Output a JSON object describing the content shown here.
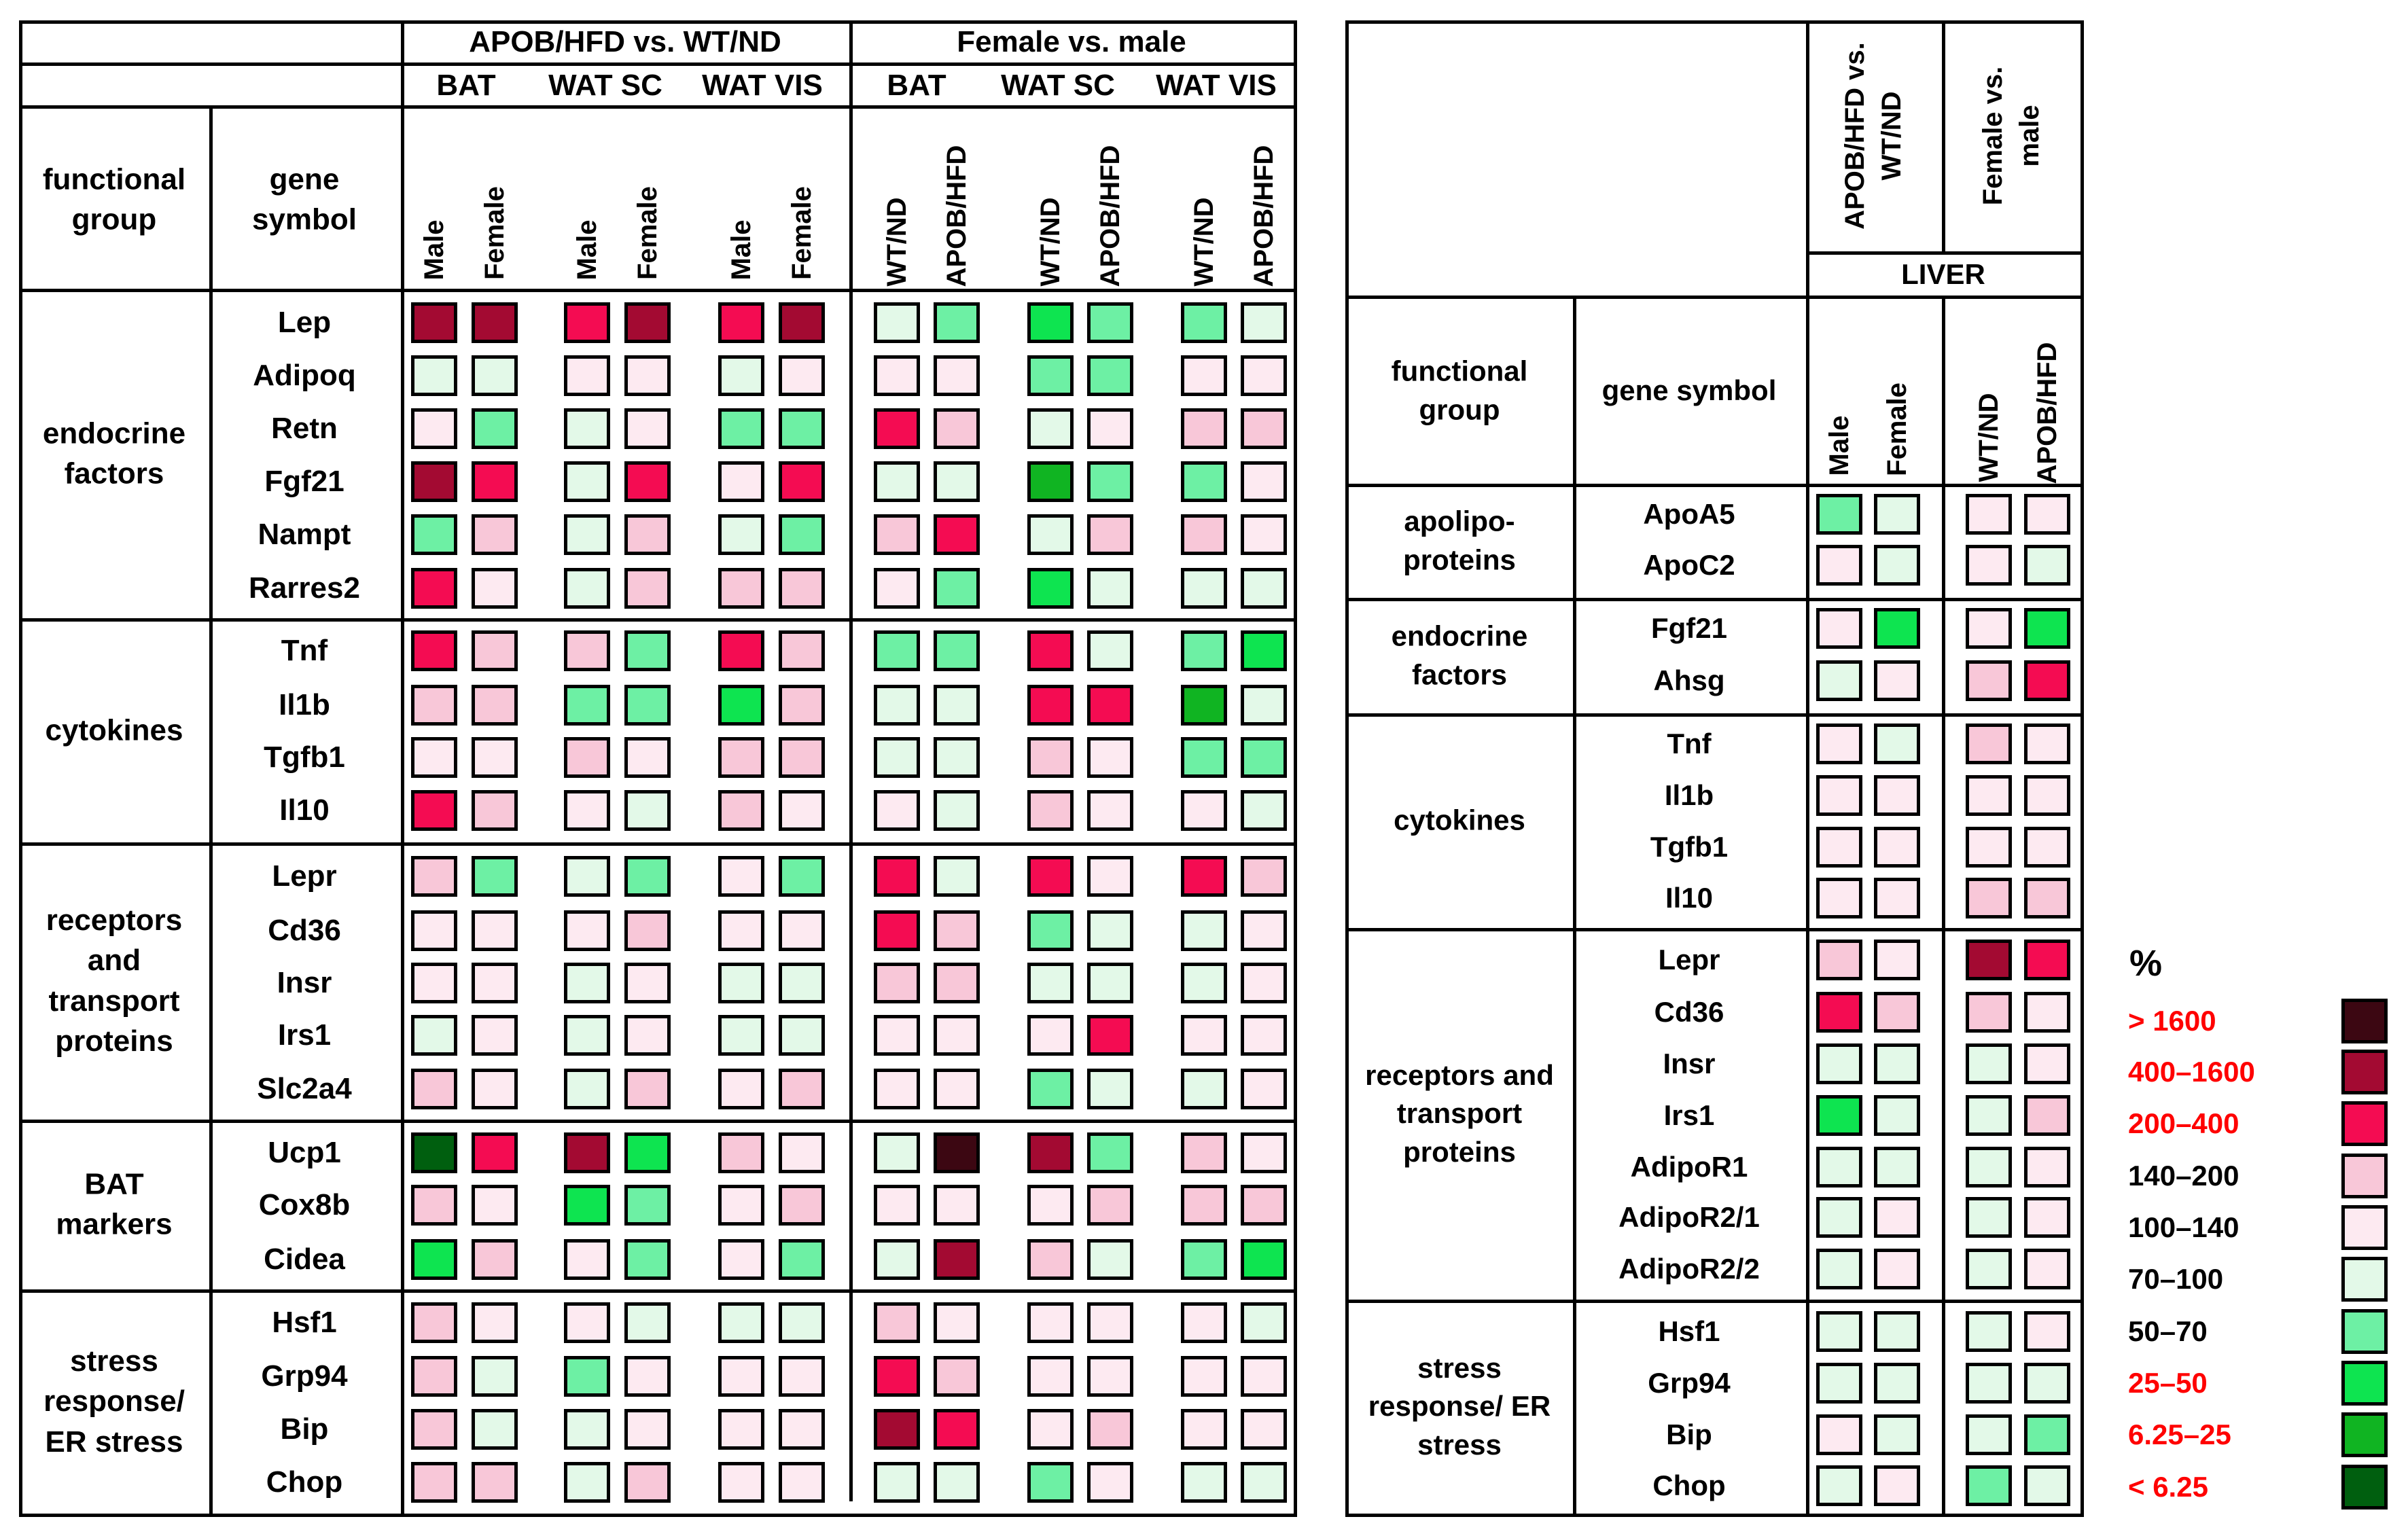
{
  "colors": {
    "gt1600": "#3c0712",
    "c400_1600": "#a30a32",
    "c200_400": "#f40c52",
    "c140_200": "#f8c7d8",
    "c100_140": "#fdeaf1",
    "c70_100": "#e3f9e8",
    "c50_70": "#6df0a4",
    "c25_50": "#0ee450",
    "c6_25": "#10b422",
    "lt6": "#005f0f"
  },
  "left": {
    "top_groups": [
      "APOB/HFD vs. WT/ND",
      "Female vs. male"
    ],
    "tissues": [
      "BAT",
      "WAT SC",
      "WAT VIS",
      "BAT",
      "WAT SC",
      "WAT VIS"
    ],
    "col_labels": [
      "Male",
      "Female",
      "Male",
      "Female",
      "Male",
      "Female",
      "WT/ND",
      "APOB/HFD",
      "WT/ND",
      "APOB/HFD",
      "WT/ND",
      "APOB/HFD"
    ],
    "h_group": "functional group",
    "h_gene": "gene symbol",
    "groups": [
      {
        "name": "endocrine factors"
      },
      {
        "name": "cytokines"
      },
      {
        "name": "receptors and transport proteins"
      },
      {
        "name": "BAT markers"
      },
      {
        "name": "stress response/ ER stress"
      }
    ],
    "genes": [
      "Lep",
      "Adipoq",
      "Retn",
      "Fgf21",
      "Nampt",
      "Rarres2",
      "Tnf",
      "Il1b",
      "Tgfb1",
      "Il10",
      "Lepr",
      "Cd36",
      "Insr",
      "Irs1",
      "Slc2a4",
      "Ucp1",
      "Cox8b",
      "Cidea",
      "Hsf1",
      "Grp94",
      "Bip",
      "Chop"
    ]
  },
  "right": {
    "col_groups": [
      "APOB/HFD vs. WT/ND",
      "Female vs. male"
    ],
    "tissue": "LIVER",
    "h_group": "functional group",
    "h_gene": "gene symbol",
    "col_labels": [
      "Male",
      "Female",
      "WT/ND",
      "APOB/HFD"
    ],
    "groups": [
      {
        "name": "apolipo- proteins"
      },
      {
        "name": "endocrine factors"
      },
      {
        "name": "cytokines"
      },
      {
        "name": "receptors and transport proteins"
      },
      {
        "name": "stress response/ ER stress"
      }
    ],
    "genes": [
      "ApoA5",
      "ApoC2",
      "Fgf21",
      "Ahsg",
      "Tnf",
      "Il1b",
      "Tgfb1",
      "Il10",
      "Lepr",
      "Cd36",
      "Insr",
      "Irs1",
      "AdipoR1",
      "AdipoR2/1",
      "AdipoR2/2",
      "Hsf1",
      "Grp94",
      "Bip",
      "Chop"
    ]
  },
  "legend": {
    "title": "%",
    "items": [
      {
        "label": "> 1600",
        "code": "gt1600",
        "text_color": "#ff0000"
      },
      {
        "label": "400–1600",
        "code": "c400_1600",
        "text_color": "#ff0000"
      },
      {
        "label": "200–400",
        "code": "c200_400",
        "text_color": "#ff0000"
      },
      {
        "label": "140–200",
        "code": "c140_200",
        "text_color": "#000000"
      },
      {
        "label": "100–140",
        "code": "c100_140",
        "text_color": "#000000"
      },
      {
        "label": "70–100",
        "code": "c70_100",
        "text_color": "#000000"
      },
      {
        "label": "50–70",
        "code": "c50_70",
        "text_color": "#000000"
      },
      {
        "label": "25–50",
        "code": "c25_50",
        "text_color": "#ff0000"
      },
      {
        "label": "6.25–25",
        "code": "c6_25",
        "text_color": "#ff0000"
      },
      {
        "label": "< 6.25",
        "code": "lt6",
        "text_color": "#ff0000"
      }
    ]
  },
  "chart_data": [
    {
      "type": "heatmap",
      "title": "",
      "column_groups": [
        "APOB/HFD vs. WT/ND",
        "Female vs. male"
      ],
      "columns": [
        "BAT Male",
        "BAT Female",
        "WAT SC Male",
        "WAT SC Female",
        "WAT VIS Male",
        "WAT VIS Female",
        "BAT WT/ND",
        "BAT APOB/HFD",
        "WAT SC WT/ND",
        "WAT SC APOB/HFD",
        "WAT VIS WT/ND",
        "WAT VIS APOB/HFD"
      ],
      "rows": [
        "Lep",
        "Adipoq",
        "Retn",
        "Fgf21",
        "Nampt",
        "Rarres2",
        "Tnf",
        "Il1b",
        "Tgfb1",
        "Il10",
        "Lepr",
        "Cd36",
        "Insr",
        "Irs1",
        "Slc2a4",
        "Ucp1",
        "Cox8b",
        "Cidea",
        "Hsf1",
        "Grp94",
        "Bip",
        "Chop"
      ],
      "value_scale": "%",
      "values": [
        [
          "400-1600",
          "400-1600",
          "200-400",
          "400-1600",
          "200-400",
          "400-1600",
          "70-100",
          "50-70",
          "25-50",
          "50-70",
          "50-70",
          "70-100"
        ],
        [
          "70-100",
          "70-100",
          "100-140",
          "100-140",
          "70-100",
          "100-140",
          "100-140",
          "100-140",
          "50-70",
          "50-70",
          "100-140",
          "100-140"
        ],
        [
          "100-140",
          "50-70",
          "70-100",
          "100-140",
          "50-70",
          "50-70",
          "200-400",
          "140-200",
          "70-100",
          "100-140",
          "140-200",
          "140-200"
        ],
        [
          "400-1600",
          "200-400",
          "70-100",
          "200-400",
          "100-140",
          "200-400",
          "70-100",
          "70-100",
          "6.25-25",
          "50-70",
          "50-70",
          "100-140"
        ],
        [
          "50-70",
          "140-200",
          "70-100",
          "140-200",
          "70-100",
          "50-70",
          "140-200",
          "200-400",
          "70-100",
          "140-200",
          "140-200",
          "100-140"
        ],
        [
          "200-400",
          "100-140",
          "70-100",
          "140-200",
          "140-200",
          "140-200",
          "100-140",
          "50-70",
          "25-50",
          "70-100",
          "70-100",
          "70-100"
        ],
        [
          "200-400",
          "140-200",
          "140-200",
          "50-70",
          "200-400",
          "140-200",
          "50-70",
          "50-70",
          "200-400",
          "70-100",
          "50-70",
          "25-50"
        ],
        [
          "140-200",
          "140-200",
          "50-70",
          "50-70",
          "25-50",
          "140-200",
          "70-100",
          "70-100",
          "200-400",
          "200-400",
          "6.25-25",
          "70-100"
        ],
        [
          "100-140",
          "100-140",
          "140-200",
          "100-140",
          "140-200",
          "140-200",
          "70-100",
          "70-100",
          "140-200",
          "100-140",
          "50-70",
          "50-70"
        ],
        [
          "200-400",
          "140-200",
          "100-140",
          "70-100",
          "140-200",
          "100-140",
          "100-140",
          "70-100",
          "140-200",
          "100-140",
          "100-140",
          "70-100"
        ],
        [
          "140-200",
          "50-70",
          "70-100",
          "50-70",
          "100-140",
          "50-70",
          "200-400",
          "70-100",
          "200-400",
          "100-140",
          "200-400",
          "140-200"
        ],
        [
          "100-140",
          "100-140",
          "100-140",
          "140-200",
          "100-140",
          "100-140",
          "200-400",
          "140-200",
          "50-70",
          "70-100",
          "70-100",
          "100-140"
        ],
        [
          "100-140",
          "100-140",
          "70-100",
          "100-140",
          "70-100",
          "70-100",
          "140-200",
          "140-200",
          "70-100",
          "70-100",
          "70-100",
          "100-140"
        ],
        [
          "70-100",
          "100-140",
          "70-100",
          "100-140",
          "70-100",
          "70-100",
          "100-140",
          "100-140",
          "100-140",
          "200-400",
          "100-140",
          "100-140"
        ],
        [
          "140-200",
          "100-140",
          "70-100",
          "140-200",
          "100-140",
          "140-200",
          "100-140",
          "100-140",
          "50-70",
          "70-100",
          "70-100",
          "100-140"
        ],
        [
          "<6.25",
          "200-400",
          "400-1600",
          "25-50",
          "140-200",
          "100-140",
          "70-100",
          ">1600",
          "400-1600",
          "50-70",
          "140-200",
          "100-140"
        ],
        [
          "140-200",
          "100-140",
          "25-50",
          "50-70",
          "100-140",
          "140-200",
          "100-140",
          "100-140",
          "100-140",
          "140-200",
          "140-200",
          "140-200"
        ],
        [
          "25-50",
          "140-200",
          "100-140",
          "50-70",
          "100-140",
          "50-70",
          "70-100",
          "400-1600",
          "140-200",
          "70-100",
          "50-70",
          "25-50"
        ],
        [
          "140-200",
          "100-140",
          "100-140",
          "70-100",
          "70-100",
          "70-100",
          "140-200",
          "100-140",
          "100-140",
          "100-140",
          "100-140",
          "70-100"
        ],
        [
          "140-200",
          "70-100",
          "50-70",
          "100-140",
          "100-140",
          "100-140",
          "200-400",
          "140-200",
          "100-140",
          "100-140",
          "100-140",
          "100-140"
        ],
        [
          "140-200",
          "70-100",
          "70-100",
          "100-140",
          "100-140",
          "100-140",
          "400-1600",
          "200-400",
          "100-140",
          "140-200",
          "100-140",
          "100-140"
        ],
        [
          "140-200",
          "140-200",
          "70-100",
          "140-200",
          "100-140",
          "100-140",
          "70-100",
          "70-100",
          "50-70",
          "100-140",
          "70-100",
          "70-100"
        ]
      ]
    },
    {
      "type": "heatmap",
      "title": "",
      "column_groups": [
        "APOB/HFD vs. WT/ND",
        "Female vs. male"
      ],
      "columns": [
        "LIVER Male",
        "LIVER Female",
        "LIVER WT/ND",
        "LIVER APOB/HFD"
      ],
      "rows": [
        "ApoA5",
        "ApoC2",
        "Fgf21",
        "Ahsg",
        "Tnf",
        "Il1b",
        "Tgfb1",
        "Il10",
        "Lepr",
        "Cd36",
        "Insr",
        "Irs1",
        "AdipoR1",
        "AdipoR2/1",
        "AdipoR2/2",
        "Hsf1",
        "Grp94",
        "Bip",
        "Chop"
      ],
      "value_scale": "%",
      "values": [
        [
          "50-70",
          "70-100",
          "100-140",
          "100-140"
        ],
        [
          "100-140",
          "70-100",
          "100-140",
          "70-100"
        ],
        [
          "100-140",
          "25-50",
          "100-140",
          "25-50"
        ],
        [
          "70-100",
          "100-140",
          "140-200",
          "200-400"
        ],
        [
          "100-140",
          "70-100",
          "140-200",
          "100-140"
        ],
        [
          "100-140",
          "100-140",
          "100-140",
          "100-140"
        ],
        [
          "100-140",
          "100-140",
          "100-140",
          "100-140"
        ],
        [
          "100-140",
          "100-140",
          "140-200",
          "140-200"
        ],
        [
          "140-200",
          "100-140",
          "400-1600",
          "200-400"
        ],
        [
          "200-400",
          "140-200",
          "140-200",
          "100-140"
        ],
        [
          "70-100",
          "70-100",
          "70-100",
          "100-140"
        ],
        [
          "25-50",
          "70-100",
          "70-100",
          "140-200"
        ],
        [
          "70-100",
          "70-100",
          "70-100",
          "100-140"
        ],
        [
          "70-100",
          "100-140",
          "70-100",
          "100-140"
        ],
        [
          "70-100",
          "100-140",
          "70-100",
          "100-140"
        ],
        [
          "70-100",
          "70-100",
          "70-100",
          "100-140"
        ],
        [
          "70-100",
          "70-100",
          "70-100",
          "70-100"
        ],
        [
          "100-140",
          "70-100",
          "70-100",
          "50-70"
        ],
        [
          "70-100",
          "100-140",
          "50-70",
          "70-100"
        ]
      ]
    }
  ]
}
